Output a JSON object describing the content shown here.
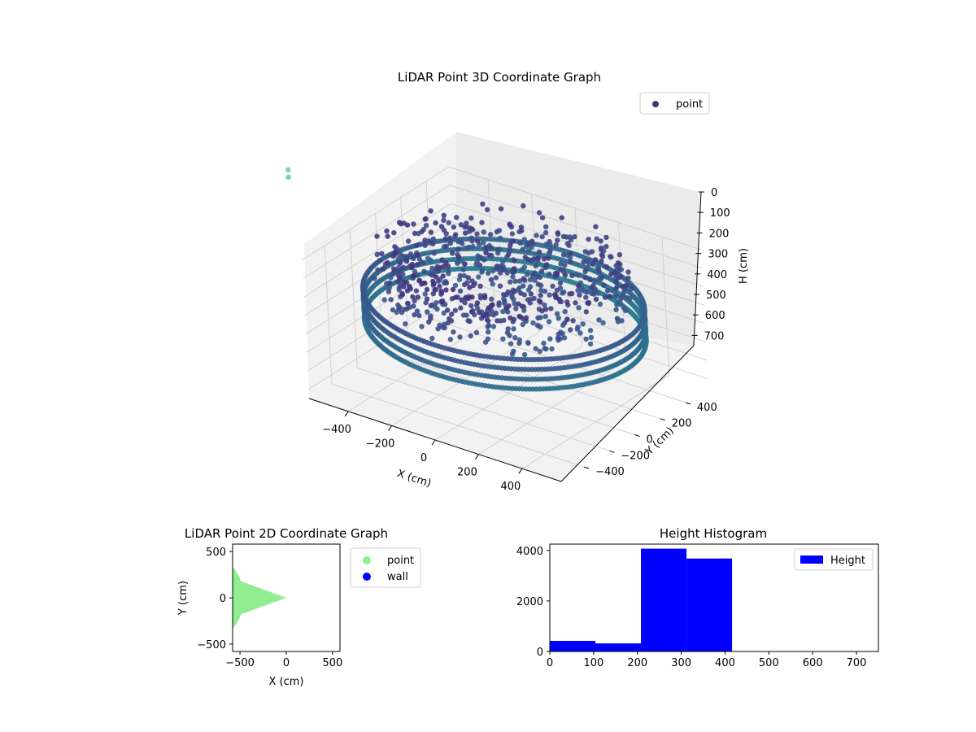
{
  "chart_data": [
    {
      "type": "scatter",
      "projection": "3d",
      "title": "LiDAR Point 3D Coordinate Graph",
      "xlabel": "X (cm)",
      "ylabel": "Y (cm)",
      "zlabel": "H (cm)",
      "x_ticks": [
        "−400",
        "−200",
        "0",
        "200",
        "400"
      ],
      "y_ticks": [
        "400",
        "200",
        "0",
        "−200",
        "−400"
      ],
      "z_ticks": [
        "0",
        "100",
        "200",
        "300",
        "400",
        "500",
        "600",
        "700"
      ],
      "z_inverted": true,
      "xlim": [
        -580,
        580
      ],
      "ylim": [
        -580,
        580
      ],
      "zlim": [
        0,
        750
      ],
      "grid": true,
      "colormap": "viridis",
      "legend": {
        "position": "top-right",
        "entries": [
          {
            "name": "point",
            "color": "#46337e"
          }
        ]
      },
      "point_cloud": {
        "wall_radius_cm": 560,
        "wall_height_range_cm": [
          240,
          400
        ],
        "interior_height_range_cm": [
          0,
          260
        ],
        "outliers": [
          {
            "x": -560,
            "y": 560,
            "h": 0
          },
          {
            "x": -560,
            "y": 560,
            "h": 40
          }
        ]
      }
    },
    {
      "type": "scatter",
      "title": "LiDAR Point 2D Coordinate Graph",
      "xlabel": "X (cm)",
      "ylabel": "Y (cm)",
      "x_ticks": [
        "−500",
        "0",
        "500"
      ],
      "y_ticks": [
        "500",
        "0",
        "−500"
      ],
      "xlim": [
        -580,
        580
      ],
      "ylim": [
        -580,
        580
      ],
      "series": [
        {
          "name": "point",
          "color": "#90ee90",
          "shape": "disk",
          "center": [
            0,
            0
          ],
          "radius": 520,
          "gap_angle_deg": [
            160,
            200
          ]
        },
        {
          "name": "wall",
          "color": "#0000ff",
          "points": []
        }
      ],
      "legend": {
        "position": "outside-right"
      }
    },
    {
      "type": "bar",
      "title": "Height Histogram",
      "x_ticks": [
        "0",
        "100",
        "200",
        "300",
        "400",
        "500",
        "600",
        "700"
      ],
      "y_ticks": [
        "0",
        "2000",
        "4000"
      ],
      "xlim": [
        0,
        750
      ],
      "ylim": [
        0,
        4250
      ],
      "bin_edges": [
        0,
        104,
        208,
        312,
        416,
        520,
        624,
        728
      ],
      "series": [
        {
          "name": "Height",
          "color": "#0000ff",
          "values": [
            420,
            320,
            4070,
            3680,
            0,
            0,
            0
          ]
        }
      ],
      "legend": {
        "position": "top-right"
      }
    }
  ]
}
